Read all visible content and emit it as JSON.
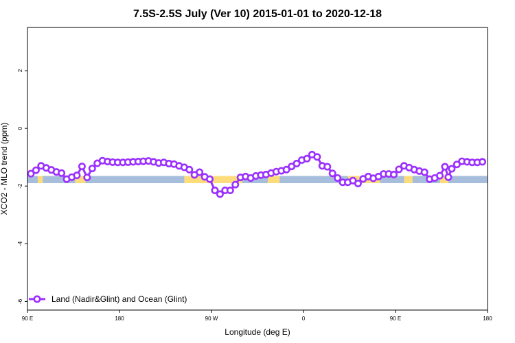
{
  "chart_data": {
    "type": "line",
    "title": "7.5S-2.5S July (Ver 10)   2015-01-01 to 2020-12-18",
    "xlabel": "Longitude (deg E)",
    "ylabel": "XCO2 - MLO trend (ppm)",
    "xlim": [
      -90,
      180
    ],
    "ylim": [
      -6.3,
      3.5
    ],
    "x_ticks": [
      {
        "value": -90,
        "label": "90 E"
      },
      {
        "value": -36,
        "label": "180"
      },
      {
        "value": 18,
        "label": "90 W"
      },
      {
        "value": 72,
        "label": "0"
      },
      {
        "value": 126,
        "label": "90 E"
      },
      {
        "value": 180,
        "label": "180"
      }
    ],
    "y_ticks": [
      {
        "value": 2,
        "label": "2"
      },
      {
        "value": 0,
        "label": "0"
      },
      {
        "value": -2,
        "label": "-2"
      },
      {
        "value": -4,
        "label": "-4"
      },
      {
        "value": -6,
        "label": "-6"
      }
    ],
    "grid": false,
    "legend_position": "bottom-left",
    "surface_band": {
      "y_top": -1.65,
      "y_bottom": -1.9,
      "ocean_color": "#a6bddb",
      "land_color": "#fddc7c",
      "land_segments": [
        [
          -84,
          -81
        ],
        [
          -62,
          -56
        ],
        [
          2,
          36
        ],
        [
          51,
          58
        ],
        [
          98,
          117
        ],
        [
          131,
          136
        ],
        [
          152,
          157
        ]
      ]
    },
    "series": [
      {
        "name": "Land (Nadir&Glint) and Ocean (Glint)",
        "color": "#9b30ff",
        "x": [
          -88,
          -85,
          -82,
          -79,
          -76,
          -73,
          -70,
          -67,
          -64,
          -61,
          -58,
          -55,
          -52,
          -49,
          -46,
          -43,
          -40,
          -37,
          -34,
          -31,
          -28,
          -25,
          -22,
          -19,
          -16,
          -13,
          -10,
          -7,
          -4,
          -1,
          2,
          5,
          8,
          11,
          14,
          17,
          20,
          23,
          26,
          29,
          32,
          35,
          38,
          41,
          44,
          47,
          50,
          53,
          56,
          59,
          62,
          65,
          68,
          71,
          74,
          77,
          80,
          83,
          86,
          89,
          92,
          95,
          98,
          101,
          104,
          107,
          110,
          113,
          116,
          119,
          122,
          125,
          128,
          131,
          134,
          137,
          140,
          143,
          146,
          149,
          152,
          155,
          157,
          159,
          162,
          165,
          168,
          171,
          174,
          177
        ],
        "y": [
          -1.57,
          -1.45,
          -1.3,
          -1.37,
          -1.44,
          -1.51,
          -1.55,
          -1.76,
          -1.69,
          -1.63,
          -1.32,
          -1.7,
          -1.39,
          -1.21,
          -1.12,
          -1.15,
          -1.17,
          -1.18,
          -1.18,
          -1.17,
          -1.16,
          -1.15,
          -1.14,
          -1.13,
          -1.16,
          -1.2,
          -1.18,
          -1.22,
          -1.24,
          -1.3,
          -1.35,
          -1.43,
          -1.61,
          -1.52,
          -1.68,
          -1.76,
          -2.15,
          -2.28,
          -2.15,
          -2.15,
          -1.95,
          -1.7,
          -1.67,
          -1.72,
          -1.65,
          -1.62,
          -1.6,
          -1.55,
          -1.5,
          -1.47,
          -1.43,
          -1.32,
          -1.22,
          -1.1,
          -1.05,
          -0.91,
          -0.99,
          -1.3,
          -1.33,
          -1.56,
          -1.72,
          -1.87,
          -1.87,
          -1.81,
          -1.91,
          -1.75,
          -1.67,
          -1.73,
          -1.67,
          -1.58,
          -1.58,
          -1.6,
          -1.42,
          -1.3,
          -1.36,
          -1.43,
          -1.48,
          -1.52,
          -1.76,
          -1.72,
          -1.64,
          -1.33,
          -1.69,
          -1.4,
          -1.25,
          -1.14,
          -1.16,
          -1.18,
          -1.18,
          -1.16
        ]
      }
    ]
  }
}
